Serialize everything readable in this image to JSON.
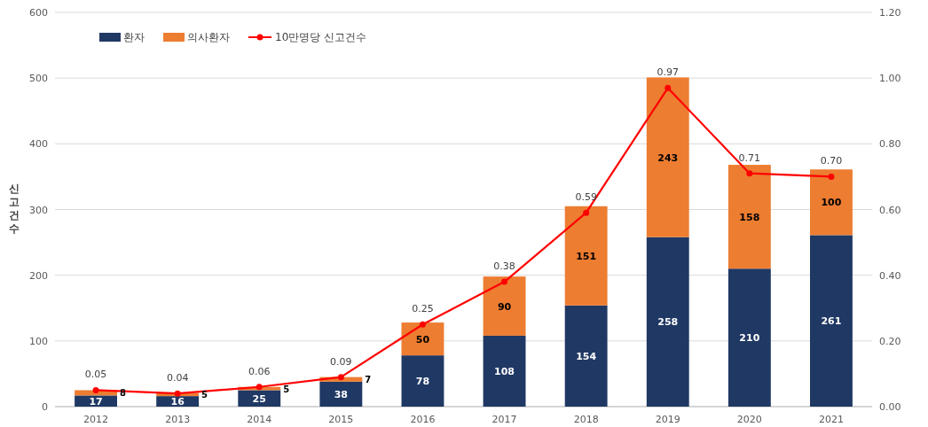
{
  "chart_data": {
    "type": "bar",
    "stacked": true,
    "ylabel": "신고건수",
    "categories": [
      "2012",
      "2013",
      "2014",
      "2015",
      "2016",
      "2017",
      "2018",
      "2019",
      "2020",
      "2021"
    ],
    "series": [
      {
        "name": "환자",
        "color": "#203864",
        "values": [
          17,
          16,
          25,
          38,
          78,
          108,
          154,
          258,
          210,
          261
        ]
      },
      {
        "name": "의사환자",
        "color": "#ed7d31",
        "values": [
          8,
          5,
          5,
          7,
          50,
          90,
          151,
          243,
          158,
          100
        ]
      },
      {
        "name": "10만명당 신고건수",
        "type": "line",
        "axis": "y2",
        "color": "#ff0000",
        "marker": "circle",
        "values": [
          0.05,
          0.04,
          0.06,
          0.09,
          0.25,
          0.38,
          0.59,
          0.97,
          0.71,
          0.7
        ],
        "value_labels": [
          "0.05",
          "0.04",
          "0.06",
          "0.09",
          "0.25",
          "0.38",
          "0.59",
          "0.97",
          "0.71",
          "0.70"
        ]
      }
    ],
    "ylim": [
      0,
      600
    ],
    "yticks": [
      0,
      100,
      200,
      300,
      400,
      500,
      600
    ],
    "y2lim": [
      0,
      1.2
    ],
    "y2ticks": [
      {
        "value": 0,
        "label": "0.00"
      },
      {
        "value": 0.2,
        "label": "0.20"
      },
      {
        "value": 0.4,
        "label": "0.40"
      },
      {
        "value": 0.6,
        "label": "0.60"
      },
      {
        "value": 0.8,
        "label": "0.80"
      },
      {
        "value": 1.0,
        "label": "1.00"
      },
      {
        "value": 1.2,
        "label": "1.20"
      }
    ],
    "grid": "y",
    "legend": "top left",
    "data_labels": true
  }
}
